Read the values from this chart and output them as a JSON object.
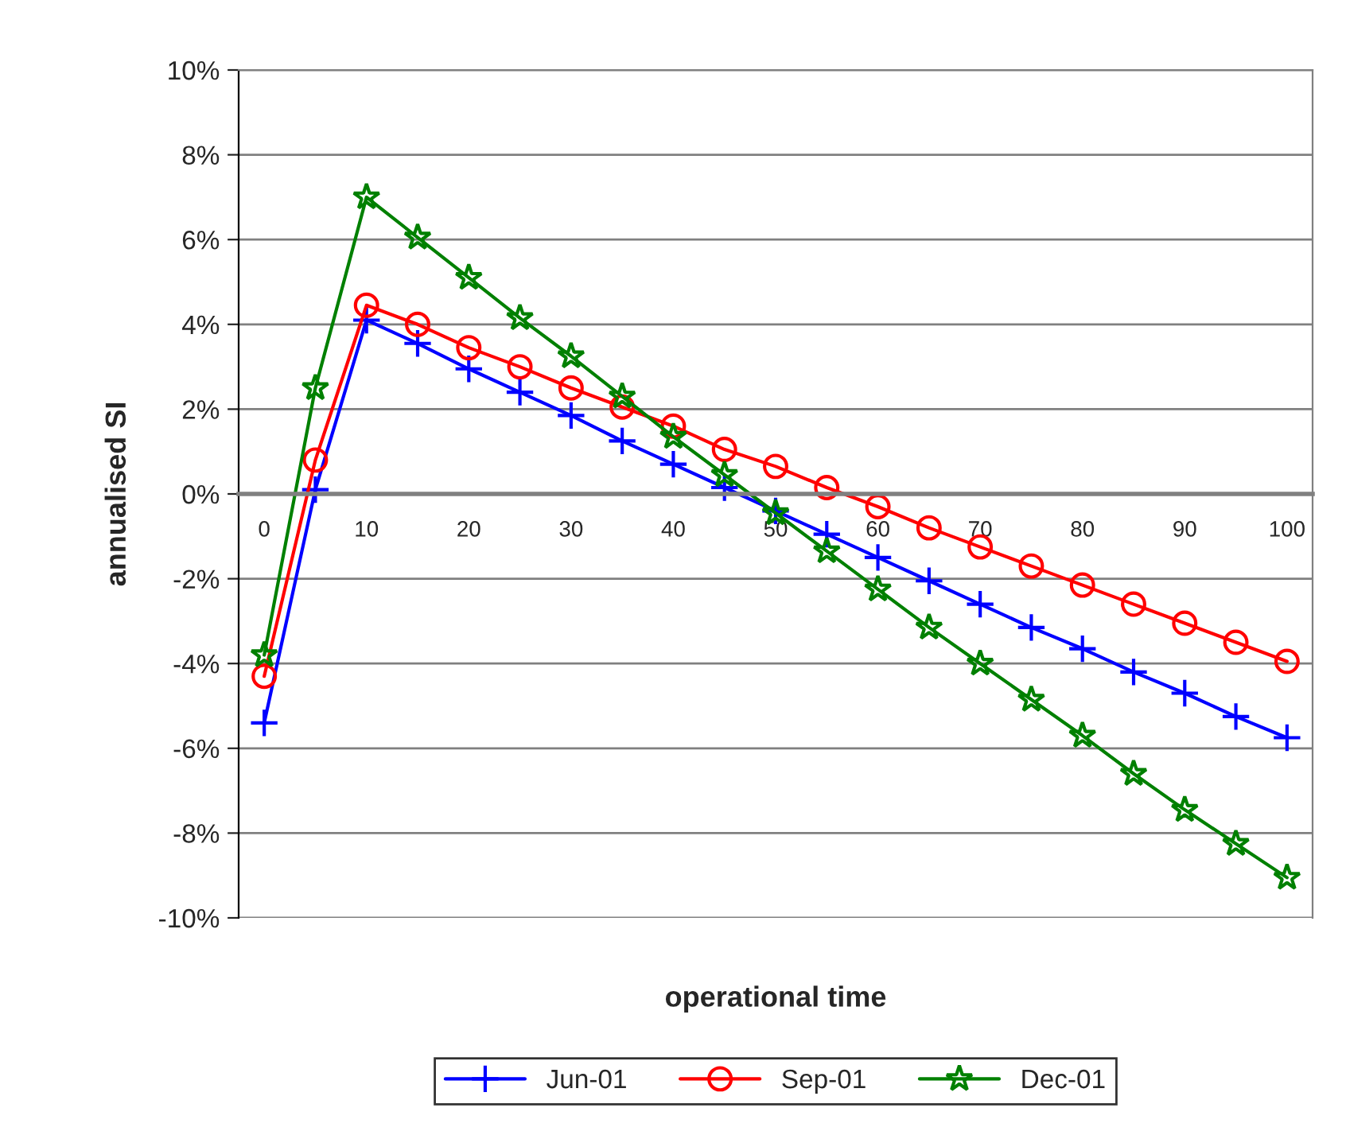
{
  "chart_data": {
    "type": "line",
    "xlabel": "operational time",
    "ylabel": "annualised SI",
    "categories": [
      "0",
      null,
      "10",
      null,
      "20",
      null,
      "30",
      null,
      "40",
      null,
      "50",
      null,
      "60",
      null,
      "70",
      null,
      "80",
      null,
      "90",
      null,
      "100"
    ],
    "series": [
      {
        "name": "Jun-01",
        "color": "#0000ff",
        "marker": "cross",
        "values": [
          -5.4,
          0.1,
          4.1,
          3.55,
          2.95,
          2.4,
          1.85,
          1.25,
          0.7,
          0.15,
          -0.4,
          -0.95,
          -1.5,
          -2.05,
          -2.6,
          -3.15,
          -3.65,
          -4.2,
          -4.7,
          -5.25,
          -5.75
        ]
      },
      {
        "name": "Sep-01",
        "color": "#ff0000",
        "marker": "circle",
        "values": [
          -4.3,
          0.8,
          4.45,
          4.0,
          3.45,
          3.0,
          2.5,
          2.05,
          1.6,
          1.05,
          0.65,
          0.15,
          -0.3,
          -0.8,
          -1.25,
          -1.7,
          -2.15,
          -2.6,
          -3.05,
          -3.5,
          -3.95
        ]
      },
      {
        "name": "Dec-01",
        "color": "#008000",
        "marker": "star",
        "values": [
          -3.8,
          2.5,
          7.0,
          6.05,
          5.1,
          4.15,
          3.25,
          2.3,
          1.35,
          0.45,
          -0.45,
          -1.35,
          -2.25,
          -3.15,
          -4.0,
          -4.85,
          -5.7,
          -6.6,
          -7.45,
          -8.25,
          -9.05
        ]
      }
    ],
    "ylim": [
      -10,
      10
    ],
    "yticks": [
      {
        "value": -10,
        "label": "-10%"
      },
      {
        "value": -8,
        "label": "-8%"
      },
      {
        "value": -6,
        "label": "-6%"
      },
      {
        "value": -4,
        "label": "-4%"
      },
      {
        "value": -2,
        "label": "-2%"
      },
      {
        "value": 0,
        "label": "0%"
      },
      {
        "value": 2,
        "label": "2%"
      },
      {
        "value": 4,
        "label": "4%"
      },
      {
        "value": 6,
        "label": "6%"
      },
      {
        "value": 8,
        "label": "8%"
      },
      {
        "value": 10,
        "label": "10%"
      }
    ],
    "grid": "y",
    "legend": "bottom",
    "line_style": "solid"
  }
}
